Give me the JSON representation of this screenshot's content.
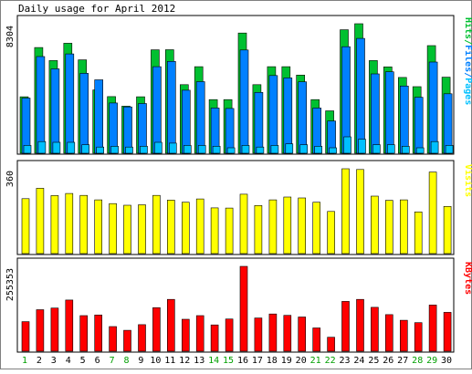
{
  "title": "Daily usage for April 2012",
  "colors": {
    "background": "#FFFFFF",
    "panel_border": "#000000",
    "hits": "#00C030",
    "files": "#0080FF",
    "pages": "#00C0FF",
    "visits": "#FFFF00",
    "kbytes": "#FF0000",
    "weekday_label": "#000000",
    "weekend_label": "#00A000"
  },
  "chart_data": [
    {
      "type": "bar",
      "name": "pages-files-hits",
      "categories": [
        "1",
        "2",
        "3",
        "4",
        "5",
        "6",
        "7",
        "8",
        "9",
        "10",
        "11",
        "12",
        "13",
        "14",
        "15",
        "16",
        "17",
        "18",
        "19",
        "20",
        "21",
        "22",
        "23",
        "24",
        "25",
        "26",
        "27",
        "28",
        "29",
        "30"
      ],
      "series": [
        {
          "name": "Hits",
          "color_key": "hits",
          "values": [
            3620,
            6780,
            5940,
            7050,
            5990,
            4060,
            3630,
            3020,
            3620,
            6630,
            6640,
            4400,
            5550,
            3440,
            3440,
            7710,
            4400,
            5550,
            5550,
            5010,
            3440,
            2720,
            7920,
            8304,
            5940,
            5540,
            4860,
            4270,
            6900,
            4880
          ]
        },
        {
          "name": "Files",
          "color_key": "files",
          "values": [
            3540,
            6200,
            5410,
            6370,
            5120,
            4710,
            3220,
            2970,
            3190,
            5550,
            5890,
            4040,
            4590,
            2900,
            2870,
            6620,
            3900,
            4980,
            4830,
            4580,
            2900,
            2070,
            6830,
            7360,
            5090,
            5220,
            4310,
            3590,
            5850,
            3810
          ]
        },
        {
          "name": "Pages",
          "color_key": "pages",
          "values": [
            500,
            750,
            700,
            700,
            550,
            400,
            450,
            400,
            450,
            700,
            650,
            500,
            500,
            450,
            350,
            500,
            400,
            500,
            600,
            550,
            450,
            350,
            1050,
            900,
            550,
            550,
            450,
            350,
            750,
            500
          ]
        }
      ],
      "ylabel_ticks": "8304",
      "legend": [
        "Pages",
        "Files",
        "Hits"
      ],
      "legend_position": "right",
      "ylim": [
        0,
        8304
      ]
    },
    {
      "type": "bar",
      "name": "visits",
      "categories": [
        "1",
        "2",
        "3",
        "4",
        "5",
        "6",
        "7",
        "8",
        "9",
        "10",
        "11",
        "12",
        "13",
        "14",
        "15",
        "16",
        "17",
        "18",
        "19",
        "20",
        "21",
        "22",
        "23",
        "24",
        "25",
        "26",
        "27",
        "28",
        "29",
        "30"
      ],
      "series": [
        {
          "name": "Visits",
          "color_key": "visits",
          "values": [
            233,
            277,
            246,
            255,
            247,
            228,
            212,
            205,
            207,
            247,
            227,
            218,
            232,
            194,
            193,
            252,
            204,
            228,
            240,
            236,
            218,
            179,
            360,
            357,
            244,
            226,
            228,
            177,
            346,
            200
          ]
        }
      ],
      "ylabel_ticks": "360",
      "legend": [
        "Visits"
      ],
      "legend_position": "right",
      "ylim": [
        0,
        360
      ]
    },
    {
      "type": "bar",
      "name": "kbytes",
      "categories": [
        "1",
        "2",
        "3",
        "4",
        "5",
        "6",
        "7",
        "8",
        "9",
        "10",
        "11",
        "12",
        "13",
        "14",
        "15",
        "16",
        "17",
        "18",
        "19",
        "20",
        "21",
        "22",
        "23",
        "24",
        "25",
        "26",
        "27",
        "28",
        "29",
        "30"
      ],
      "series": [
        {
          "name": "KBytes",
          "color_key": "kbytes",
          "values": [
            89000,
            125000,
            130000,
            154000,
            107000,
            109000,
            74000,
            63000,
            80000,
            131000,
            156000,
            96000,
            107000,
            79000,
            97000,
            255353,
            100000,
            112000,
            108000,
            103000,
            70000,
            42000,
            150000,
            156000,
            132000,
            110000,
            93000,
            86000,
            139000,
            117000
          ]
        }
      ],
      "ylabel_ticks": "255353",
      "legend": [
        "KBytes"
      ],
      "legend_position": "right",
      "ylim": [
        0,
        255353
      ]
    }
  ],
  "x_axis": {
    "labels": [
      {
        "text": "1",
        "weekend": true
      },
      {
        "text": "2",
        "weekend": false
      },
      {
        "text": "3",
        "weekend": false
      },
      {
        "text": "4",
        "weekend": false
      },
      {
        "text": "5",
        "weekend": false
      },
      {
        "text": "6",
        "weekend": false
      },
      {
        "text": "7",
        "weekend": true
      },
      {
        "text": "8",
        "weekend": true
      },
      {
        "text": "9",
        "weekend": false
      },
      {
        "text": "10",
        "weekend": false
      },
      {
        "text": "11",
        "weekend": false
      },
      {
        "text": "12",
        "weekend": false
      },
      {
        "text": "13",
        "weekend": false
      },
      {
        "text": "14",
        "weekend": true
      },
      {
        "text": "15",
        "weekend": true
      },
      {
        "text": "16",
        "weekend": false
      },
      {
        "text": "17",
        "weekend": false
      },
      {
        "text": "18",
        "weekend": false
      },
      {
        "text": "19",
        "weekend": false
      },
      {
        "text": "20",
        "weekend": false
      },
      {
        "text": "21",
        "weekend": true
      },
      {
        "text": "22",
        "weekend": true
      },
      {
        "text": "23",
        "weekend": false
      },
      {
        "text": "24",
        "weekend": false
      },
      {
        "text": "25",
        "weekend": false
      },
      {
        "text": "26",
        "weekend": false
      },
      {
        "text": "27",
        "weekend": false
      },
      {
        "text": "28",
        "weekend": true
      },
      {
        "text": "29",
        "weekend": true
      },
      {
        "text": "30",
        "weekend": false
      }
    ]
  }
}
